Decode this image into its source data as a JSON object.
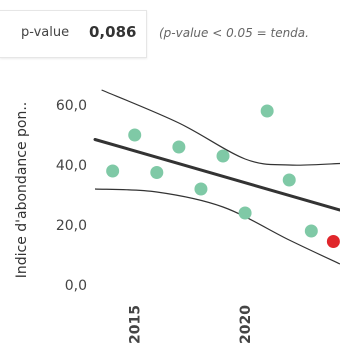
{
  "stat": {
    "pvalue_label": "p-value",
    "pvalue_value": "0,086",
    "pvalue_note": "(p-value < 0.05 = tenda."
  },
  "chart_data": {
    "type": "scatter",
    "ylabel": "Indice d'abondance pon..",
    "ylim": [
      0,
      65
    ],
    "xlim": [
      2013.2,
      2024.3
    ],
    "yticks": [
      {
        "value": 0,
        "label": "0,0"
      },
      {
        "value": 20,
        "label": "20,0"
      },
      {
        "value": 40,
        "label": "40,0"
      },
      {
        "value": 60,
        "label": "60,0"
      }
    ],
    "xticks": [
      {
        "value": 2015,
        "label": "2015"
      },
      {
        "value": 2020,
        "label": "2020"
      }
    ],
    "points": [
      {
        "x": 2014,
        "y": 38
      },
      {
        "x": 2015,
        "y": 50
      },
      {
        "x": 2016,
        "y": 37.5
      },
      {
        "x": 2017,
        "y": 46
      },
      {
        "x": 2018,
        "y": 32
      },
      {
        "x": 2019,
        "y": 43
      },
      {
        "x": 2020,
        "y": 24
      },
      {
        "x": 2021,
        "y": 58
      },
      {
        "x": 2022,
        "y": 35
      },
      {
        "x": 2023,
        "y": 18
      },
      {
        "x": 2024,
        "y": 14.5,
        "highlight": true
      }
    ],
    "trend": {
      "x": [
        2013.2,
        2024.3
      ],
      "y": [
        48.5,
        25
      ]
    },
    "band_upper": {
      "x": [
        2013.5,
        2017,
        2020,
        2022,
        2024.3
      ],
      "y": [
        65,
        54,
        42,
        40,
        40.5
      ]
    },
    "band_lower": {
      "x": [
        2013.2,
        2016,
        2019,
        2022,
        2024.3
      ],
      "y": [
        32,
        31,
        26,
        15,
        7
      ]
    },
    "colors": {
      "point": "#7fc9a6",
      "highlight": "#e0262b",
      "trend": "#333333",
      "band": "#333333",
      "text": "#444444"
    }
  }
}
